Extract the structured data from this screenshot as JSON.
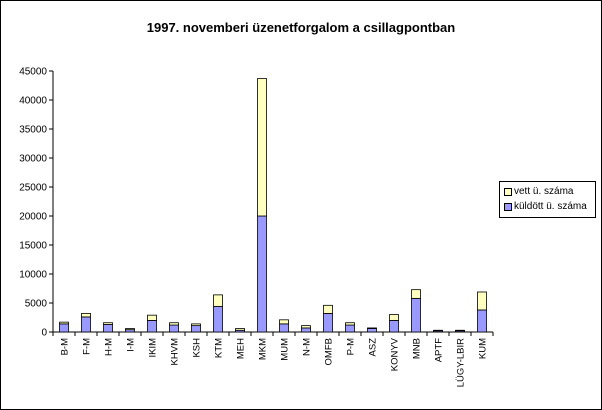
{
  "chart_data": {
    "type": "bar",
    "stacked": true,
    "title": "1997. novemberi üzenetforgalom a csillagpontban",
    "xlabel": "",
    "ylabel": "",
    "ylim": [
      0,
      45000
    ],
    "yticks": [
      0,
      5000,
      10000,
      15000,
      20000,
      25000,
      30000,
      35000,
      40000,
      45000
    ],
    "categories": [
      "B-M",
      "F-M",
      "H-M",
      "I-M",
      "IKIM",
      "KHVM",
      "KSH",
      "KTM",
      "MEH",
      "MKM",
      "MUM",
      "N-M",
      "OMFB",
      "P-M",
      "ASZ",
      "KONYV",
      "MNB",
      "APTF",
      "LÜGY-LBIR",
      "KUM"
    ],
    "series": [
      {
        "name": "küldött ü. száma",
        "color": "#9999ff",
        "values": [
          1400,
          2600,
          1300,
          400,
          2000,
          1200,
          1100,
          4400,
          300,
          20000,
          1400,
          700,
          3200,
          1200,
          600,
          2000,
          5800,
          200,
          200,
          3800
        ]
      },
      {
        "name": "vett ü. száma",
        "color": "#ffffc0",
        "values": [
          300,
          600,
          300,
          200,
          900,
          400,
          300,
          2000,
          300,
          23700,
          700,
          400,
          1400,
          400,
          100,
          1000,
          1500,
          100,
          100,
          3100
        ]
      }
    ],
    "legend_position": "right",
    "grid": false
  }
}
